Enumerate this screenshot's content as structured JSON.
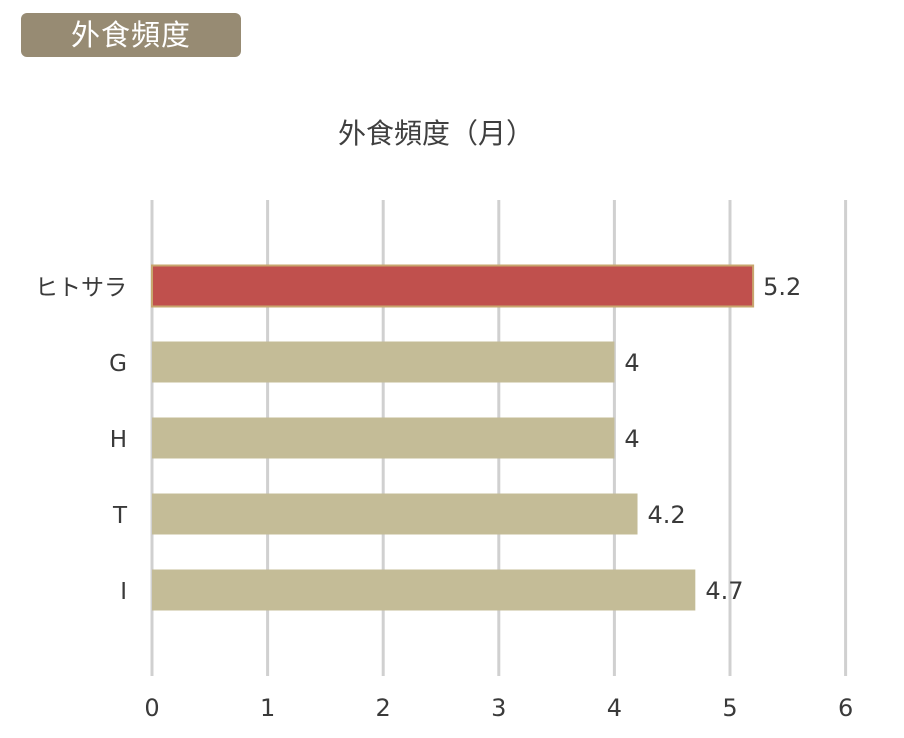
{
  "header": {
    "badge_label": "外食頻度"
  },
  "colors": {
    "badge": "#978b73",
    "highlight_bar": "#c0504d",
    "highlight_border": "#c8a66e",
    "bar": "#c4bc97",
    "grid": "#d0d0d0"
  },
  "chart_data": {
    "type": "bar",
    "orientation": "horizontal",
    "title": "外食頻度（月）",
    "categories": [
      "ヒトサラ",
      "G",
      "H",
      "T",
      "I"
    ],
    "values": [
      5.2,
      4,
      4,
      4.2,
      4.7
    ],
    "value_labels": [
      "5.2",
      "4",
      "4",
      "4.2",
      "4.7"
    ],
    "highlight_index": 0,
    "xlim": [
      0,
      6
    ],
    "xticks": [
      "0",
      "1",
      "2",
      "3",
      "4",
      "5",
      "6"
    ],
    "grid": "vertical",
    "legend": "none"
  }
}
